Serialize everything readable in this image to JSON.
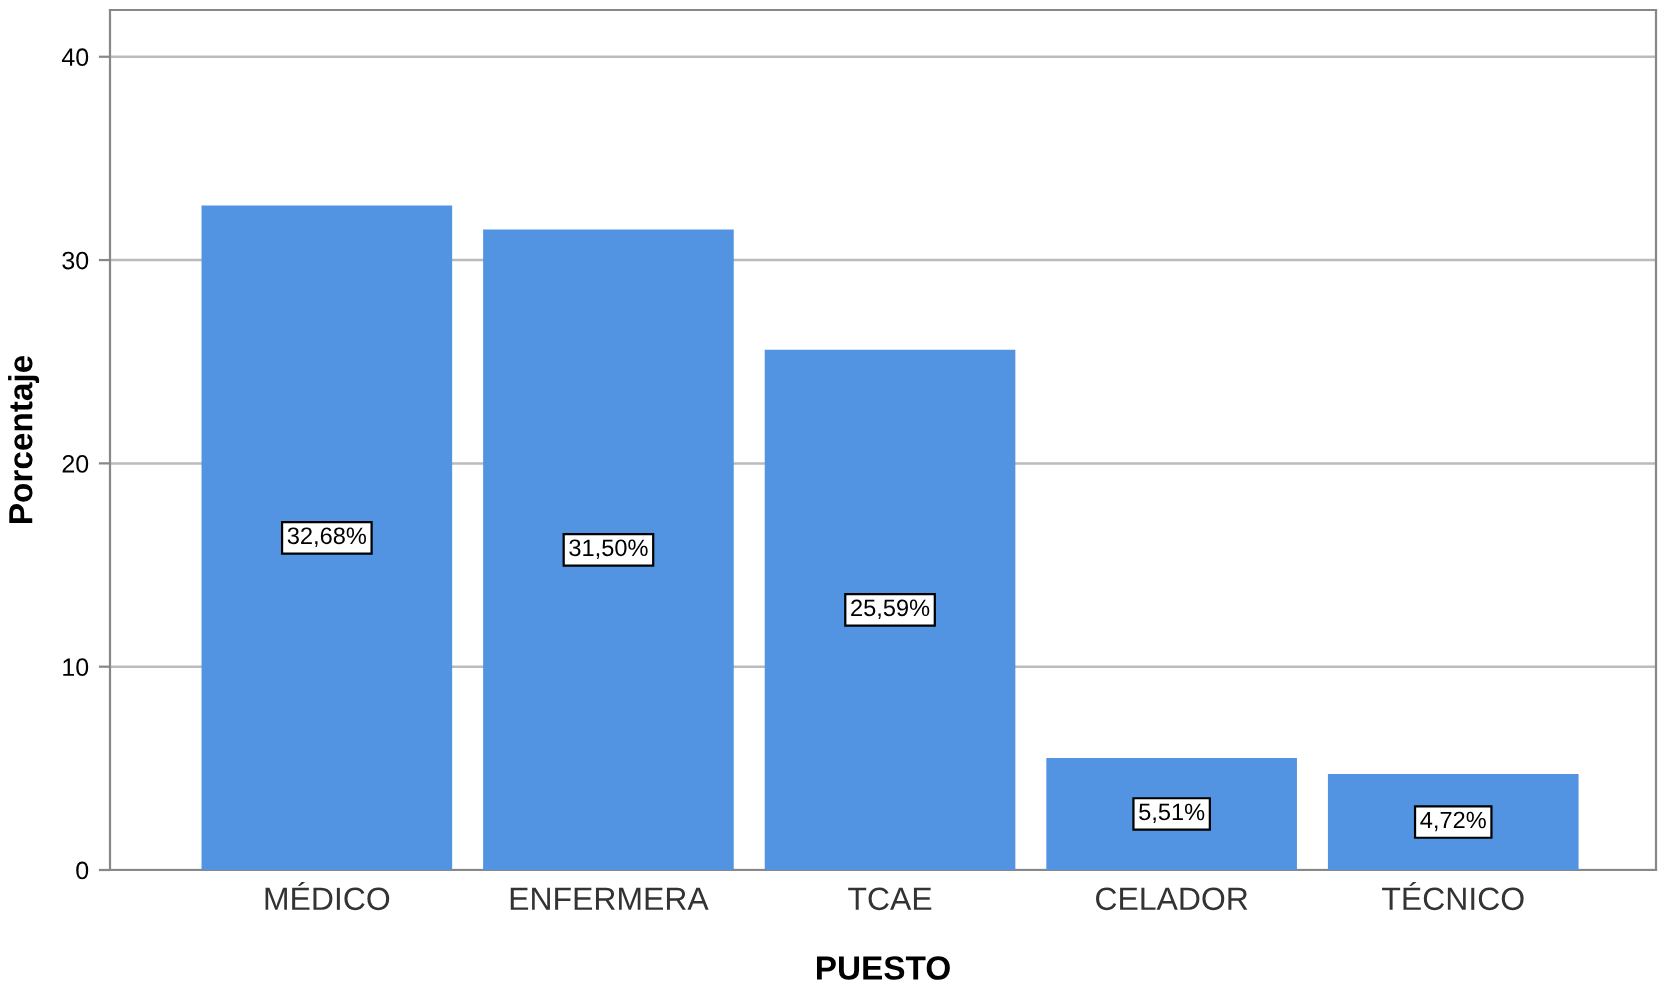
{
  "chart_data": {
    "type": "bar",
    "xlabel": "PUESTO",
    "ylabel": "Porcentaje",
    "categories": [
      "MÉDICO",
      "ENFERMERA",
      "TCAE",
      "CELADOR",
      "TÉCNICO"
    ],
    "values": [
      32.68,
      31.5,
      25.59,
      5.51,
      4.72
    ],
    "value_labels": [
      "32,68%",
      "31,50%",
      "25,59%",
      "5,51%",
      "4,72%"
    ],
    "color": "#5294e2",
    "ylim": [
      0,
      42.3
    ],
    "yticks": [
      0,
      10,
      20,
      30,
      40
    ],
    "grid": "y"
  }
}
